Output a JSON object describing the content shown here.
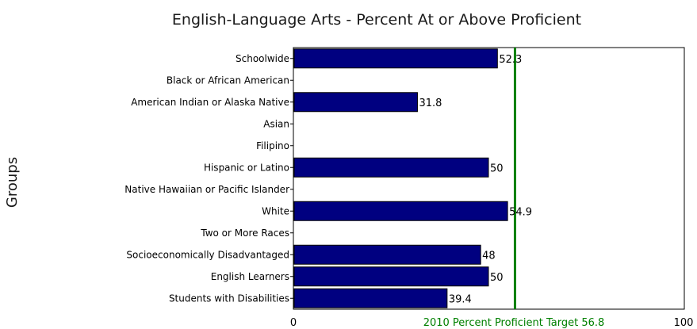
{
  "chart_data": {
    "type": "bar",
    "orientation": "horizontal",
    "title": "English-Language Arts - Percent At or Above Proficient",
    "ylabel": "Groups",
    "xlabel": "",
    "xlim": [
      0,
      100
    ],
    "x_ticks": [
      "0",
      "100"
    ],
    "categories": [
      "Schoolwide",
      "Black or African American",
      "American Indian or Alaska Native",
      "Asian",
      "Filipino",
      "Hispanic or Latino",
      "Native Hawaiian or Pacific Islander",
      "White",
      "Two or More Races",
      "Socioeconomically Disadvantaged",
      "English Learners",
      "Students with Disabilities"
    ],
    "values": [
      52.3,
      null,
      31.8,
      null,
      null,
      50,
      null,
      54.9,
      null,
      48,
      50,
      39.4
    ],
    "value_labels": [
      "52.3",
      "",
      "31.8",
      "",
      "",
      "50",
      "",
      "54.9",
      "",
      "48",
      "50",
      "39.4"
    ],
    "target": {
      "value": 56.8,
      "label": "2010 Percent Proficient Target 56.8"
    },
    "colors": {
      "bar": "#000080",
      "target": "#008000"
    },
    "grid": false,
    "legend": "none"
  }
}
